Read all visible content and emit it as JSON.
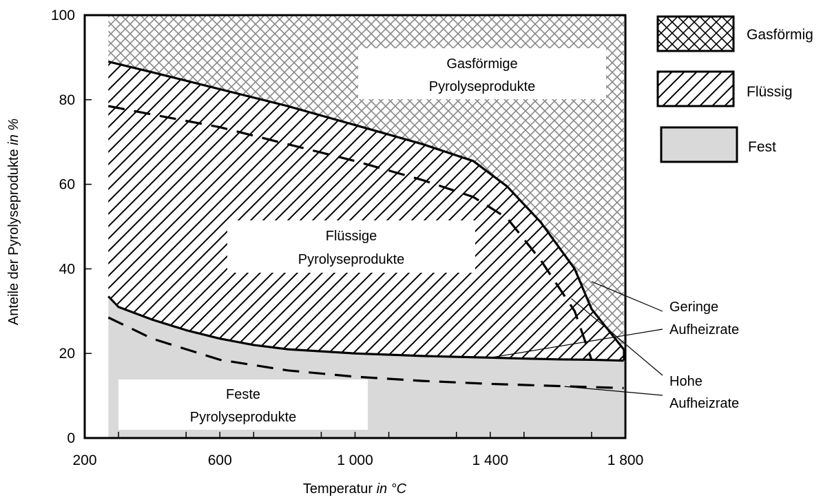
{
  "chart_data": {
    "type": "area",
    "xlabel": "Temperatur",
    "xlabel_unit": "in °C",
    "ylabel": "Anteile der Pyrolyseprodukte",
    "ylabel_unit": "in %",
    "xlim": [
      200,
      1800
    ],
    "ylim": [
      0,
      100
    ],
    "x_ticks": [
      200,
      600,
      1000,
      1400,
      1800
    ],
    "x_tick_labels": [
      "200",
      "600",
      "1 000",
      "1 400",
      "1 800"
    ],
    "y_ticks": [
      0,
      20,
      40,
      60,
      80,
      100
    ],
    "y_tick_labels": [
      "0",
      "20",
      "40",
      "60",
      "80",
      "100"
    ],
    "grid": false,
    "legend_position": "right",
    "legend": [
      {
        "label": "Gasförmig",
        "pattern": "crosshatch"
      },
      {
        "label": "Flüssig",
        "pattern": "diagonal-hatch"
      },
      {
        "label": "Fest",
        "fill": "#d9d9d9"
      }
    ],
    "regions": [
      {
        "label_line1": "Gasförmige",
        "label_line2": "Pyrolyseprodukte"
      },
      {
        "label_line1": "Flüssige",
        "label_line2": "Pyrolyseprodukte"
      },
      {
        "label_line1": "Feste",
        "label_line2": "Pyrolyseprodukte"
      }
    ],
    "series": [
      {
        "name": "Geringe Aufheizrate",
        "style": "solid",
        "boundary": "solid/liquid",
        "x": [
          270,
          300,
          400,
          500,
          600,
          700,
          800,
          900,
          1000,
          1100,
          1200,
          1300,
          1400,
          1500,
          1600,
          1700,
          1795
        ],
        "y": [
          33.5,
          31,
          28,
          25.5,
          23.5,
          22,
          21,
          20.5,
          20,
          19.7,
          19.4,
          19.2,
          19,
          18.8,
          18.6,
          18.5,
          18.3
        ]
      },
      {
        "name": "Geringe Aufheizrate",
        "style": "solid",
        "boundary": "liquid/gas",
        "x": [
          270,
          400,
          600,
          800,
          1000,
          1200,
          1350,
          1450,
          1550,
          1650,
          1700,
          1795
        ],
        "y": [
          89,
          86.5,
          82.5,
          78.5,
          74,
          69.5,
          65.5,
          59.5,
          51,
          40,
          30.5,
          21
        ]
      },
      {
        "name": "Hohe Aufheizrate",
        "style": "dashed",
        "boundary": "solid/liquid",
        "x": [
          270,
          400,
          600,
          800,
          1000,
          1200,
          1400,
          1600,
          1795
        ],
        "y": [
          28.5,
          23.5,
          18.5,
          16,
          14.5,
          13.5,
          12.8,
          12.3,
          11.8
        ]
      },
      {
        "name": "Hohe Aufheizrate",
        "style": "dashed",
        "boundary": "liquid/gas",
        "x": [
          270,
          400,
          600,
          800,
          1000,
          1200,
          1350,
          1450,
          1550,
          1650,
          1700
        ],
        "y": [
          78.5,
          76.5,
          73.5,
          69.5,
          65.5,
          61,
          57,
          52,
          42,
          30,
          18.5
        ]
      }
    ],
    "annotations": [
      {
        "line1": "Geringe",
        "line2": "Aufheizrate"
      },
      {
        "line1": "Hohe",
        "line2": "Aufheizrate"
      }
    ]
  }
}
